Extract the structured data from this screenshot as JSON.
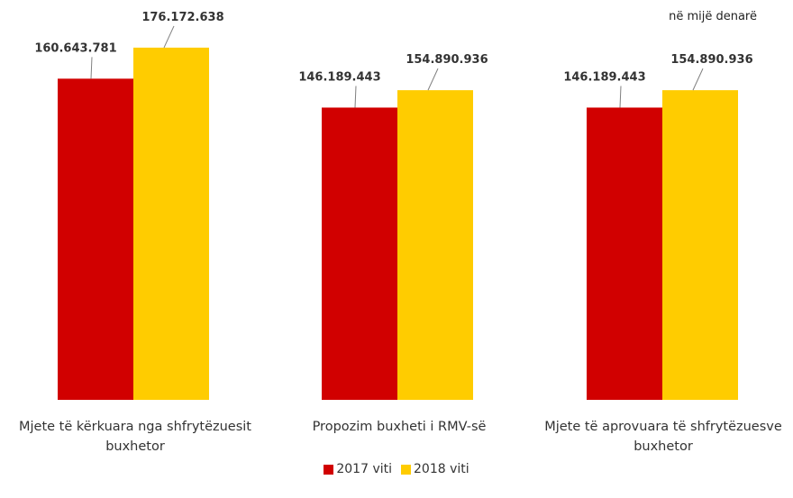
{
  "unit_note": "në mijë denarë",
  "colors": {
    "s2017": "#d10000",
    "s2018": "#ffcc00",
    "leader": "#808080"
  },
  "chart_data": {
    "type": "bar",
    "categories": [
      "Mjete të kërkuara nga shfrytëzuesit buxhetor",
      "Propozim buxheti i RMV-së",
      "Mjete të aprovuara të shfrytëzuesve buxhetor"
    ],
    "series": [
      {
        "name": "2017 viti",
        "values": [
          160643781,
          146189443,
          146189443
        ],
        "labels": [
          "160.643.781",
          "146.189.443",
          "146.189.443"
        ]
      },
      {
        "name": "2018 viti",
        "values": [
          176172638,
          154890936,
          154890936
        ],
        "labels": [
          "176.172.638",
          "154.890.936",
          "154.890.936"
        ]
      }
    ],
    "ylim": [
      0,
      200000000
    ],
    "grid": false,
    "legend_position": "bottom"
  }
}
